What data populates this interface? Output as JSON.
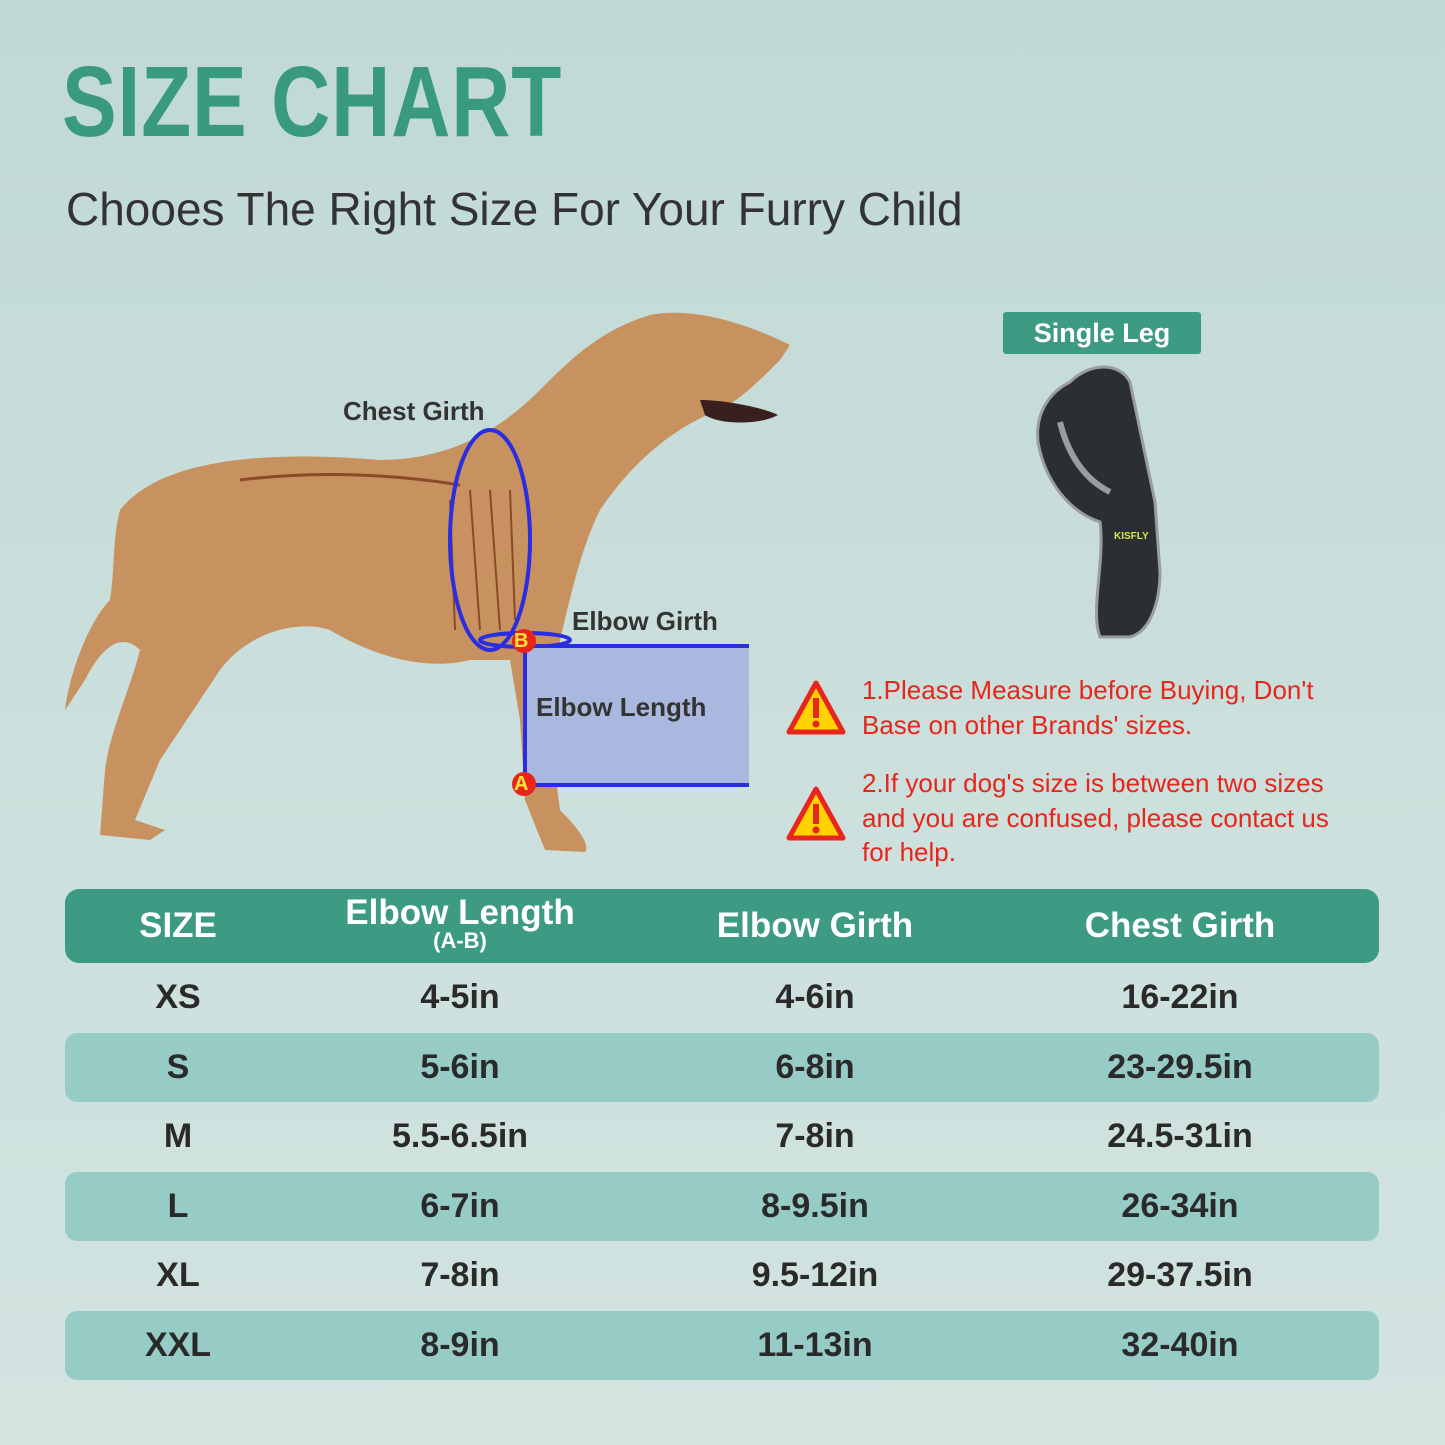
{
  "title": "SIZE CHART",
  "subtitle": "Chooes The Right Size For Your Furry Child",
  "diagram": {
    "chest_girth": "Chest Girth",
    "elbow_girth": "Elbow Girth",
    "elbow_length": "Elbow Length",
    "point_a": "A",
    "point_b": "B"
  },
  "product": {
    "badge": "Single Leg",
    "logo": "KISFLY"
  },
  "warnings": [
    {
      "icon": "warning-triangle-icon",
      "lines": [
        "1.Please Measure before Buying, Don't",
        "Base on other Brands' sizes."
      ]
    },
    {
      "icon": "warning-triangle-icon",
      "lines": [
        "2.If your dog's size is between two sizes",
        "and you are confused, please contact us",
        "for help."
      ]
    }
  ],
  "table": {
    "headers": [
      "SIZE",
      "Elbow Length",
      "Elbow Girth",
      "Chest Girth"
    ],
    "header_sub": "(A-B)",
    "rows": [
      [
        "XS",
        "4-5in",
        "4-6in",
        "16-22in"
      ],
      [
        "S",
        "5-6in",
        "6-8in",
        "23-29.5in"
      ],
      [
        "M",
        "5.5-6.5in",
        "7-8in",
        "24.5-31in"
      ],
      [
        "L",
        "6-7in",
        "8-9.5in",
        "26-34in"
      ],
      [
        "XL",
        "7-8in",
        "9.5-12in",
        "29-37.5in"
      ],
      [
        "XXL",
        "8-9in",
        "11-13in",
        "32-40in"
      ]
    ]
  },
  "colors": {
    "accent": "#3d9a83",
    "band": "#97cbc6",
    "warning": "#e8251b",
    "measure": "#2a2ee0"
  }
}
